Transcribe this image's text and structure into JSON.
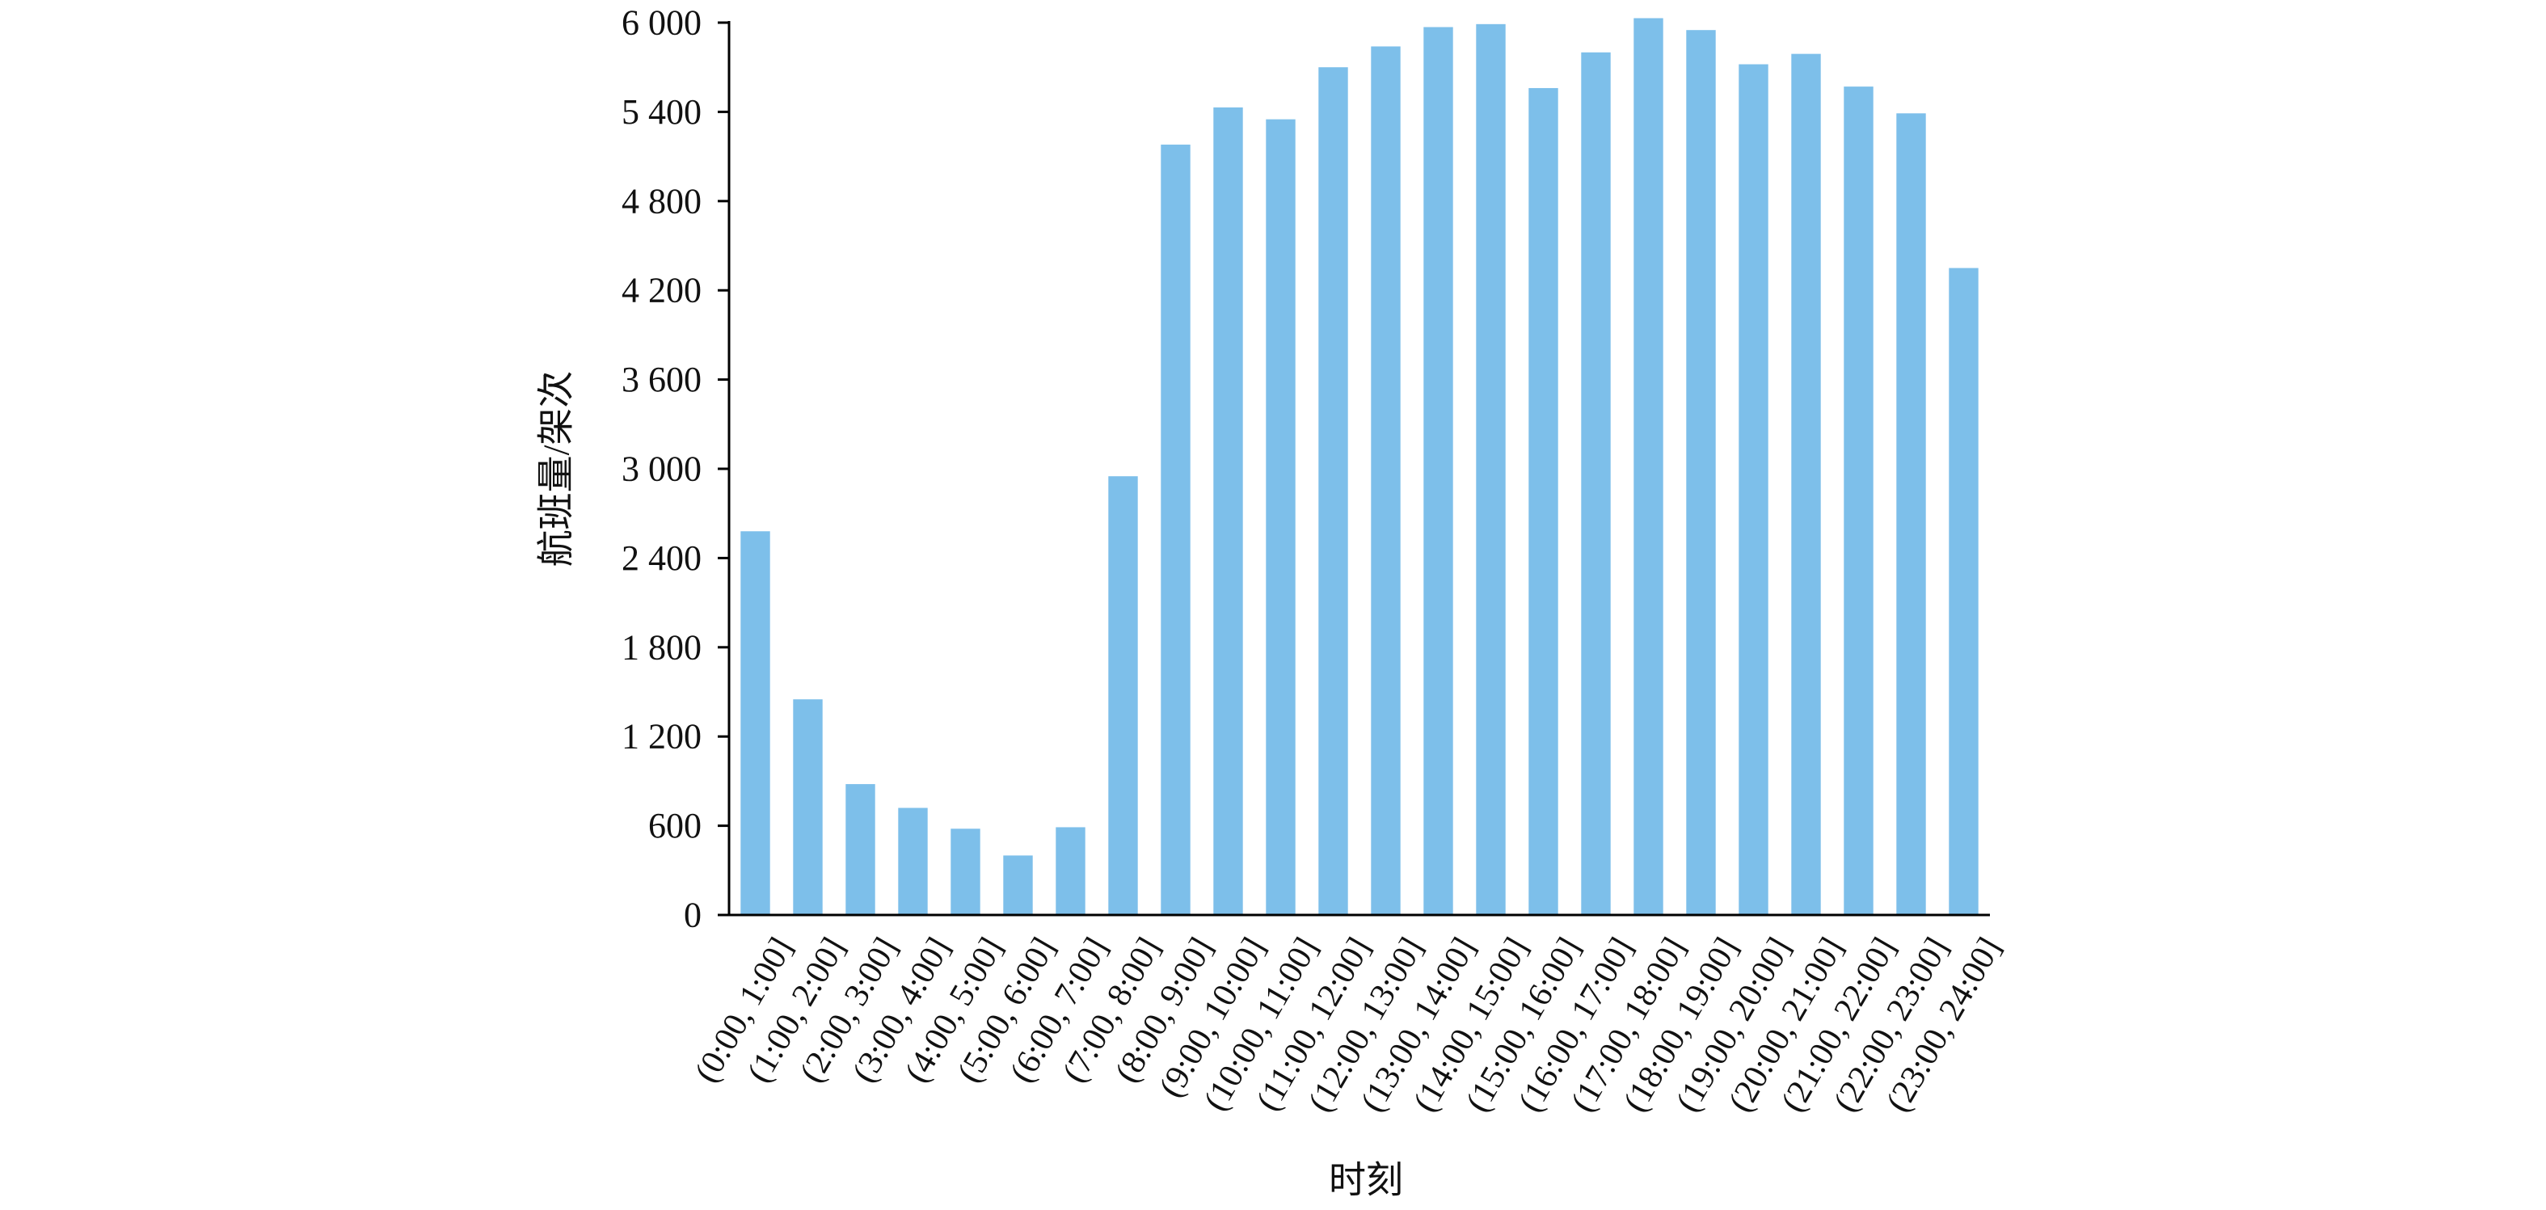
{
  "chart_data": {
    "type": "bar",
    "title": "",
    "xlabel": "时刻",
    "ylabel": "航班量/架次",
    "ylim": [
      0,
      6000
    ],
    "yticks": [
      0,
      600,
      1200,
      1800,
      2400,
      3000,
      3600,
      4200,
      4800,
      5400,
      6000
    ],
    "ytick_labels": [
      "0",
      "600",
      "1 200",
      "1 800",
      "2 400",
      "3 000",
      "3 600",
      "4 200",
      "4 800",
      "5 400",
      "6 000"
    ],
    "categories": [
      "(0:00, 1:00]",
      "(1:00, 2:00]",
      "(2:00, 3:00]",
      "(3:00, 4:00]",
      "(4:00, 5:00]",
      "(5:00, 6:00]",
      "(6:00, 7:00]",
      "(7:00, 8:00]",
      "(8:00, 9:00]",
      "(9:00, 10:00]",
      "(10:00, 11:00]",
      "(11:00, 12:00]",
      "(12:00, 13:00]",
      "(13:00, 14:00]",
      "(14:00, 15:00]",
      "(15:00, 16:00]",
      "(16:00, 17:00]",
      "(17:00, 18:00]",
      "(18:00, 19:00]",
      "(19:00, 20:00]",
      "(20:00, 21:00]",
      "(21:00, 22:00]",
      "(22:00, 23:00]",
      "(23:00, 24:00]"
    ],
    "values": [
      2580,
      1450,
      880,
      720,
      580,
      400,
      590,
      2950,
      5180,
      5430,
      5350,
      5700,
      5840,
      5970,
      5990,
      5560,
      5800,
      6030,
      5950,
      5720,
      5790,
      5570,
      5390,
      4350
    ],
    "grid": false,
    "legend": "none",
    "bar_color": "#7dbfea",
    "axis_color": "#000000"
  }
}
